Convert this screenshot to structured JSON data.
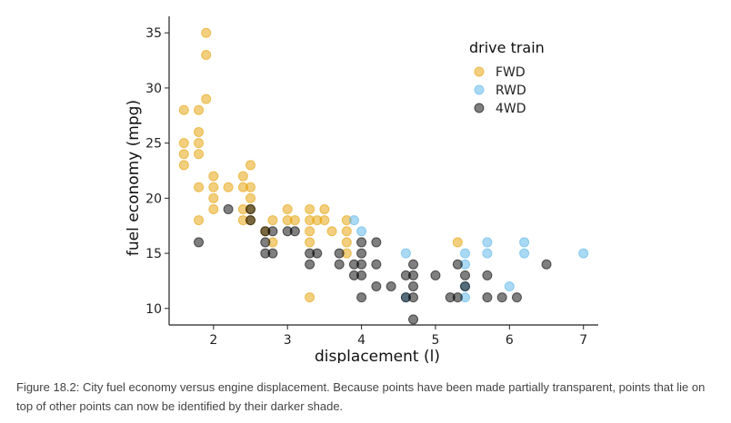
{
  "chart_data": {
    "type": "scatter",
    "xlabel": "displacement (l)",
    "ylabel": "fuel economy (mpg)",
    "xlim": [
      1.4,
      7.2
    ],
    "ylim": [
      8.5,
      36.5
    ],
    "xticks": [
      2,
      3,
      4,
      5,
      6,
      7
    ],
    "yticks": [
      10,
      15,
      20,
      25,
      30,
      35
    ],
    "grid": false,
    "legend": {
      "title": "drive train",
      "position": "top-right"
    },
    "series": [
      {
        "name": "FWD",
        "color": "#E69F00",
        "points": [
          [
            1.6,
            28
          ],
          [
            1.6,
            25
          ],
          [
            1.6,
            24
          ],
          [
            1.6,
            23
          ],
          [
            1.8,
            28
          ],
          [
            1.8,
            26
          ],
          [
            1.8,
            25
          ],
          [
            1.8,
            24
          ],
          [
            1.8,
            21
          ],
          [
            1.8,
            18
          ],
          [
            1.9,
            35
          ],
          [
            1.9,
            33
          ],
          [
            1.9,
            29
          ],
          [
            2.0,
            22
          ],
          [
            2.0,
            21
          ],
          [
            2.0,
            20
          ],
          [
            2.0,
            19
          ],
          [
            2.2,
            21
          ],
          [
            2.4,
            22
          ],
          [
            2.4,
            21
          ],
          [
            2.4,
            19
          ],
          [
            2.4,
            18
          ],
          [
            2.5,
            23
          ],
          [
            2.5,
            21
          ],
          [
            2.5,
            20
          ],
          [
            2.5,
            19
          ],
          [
            2.5,
            18
          ],
          [
            2.7,
            17
          ],
          [
            2.8,
            18
          ],
          [
            2.8,
            16
          ],
          [
            3.0,
            19
          ],
          [
            3.0,
            18
          ],
          [
            3.1,
            18
          ],
          [
            3.3,
            19
          ],
          [
            3.3,
            18
          ],
          [
            3.3,
            17
          ],
          [
            3.3,
            16
          ],
          [
            3.3,
            11
          ],
          [
            3.4,
            18
          ],
          [
            3.5,
            19
          ],
          [
            3.5,
            18
          ],
          [
            3.6,
            17
          ],
          [
            3.8,
            18
          ],
          [
            3.8,
            17
          ],
          [
            3.8,
            16
          ],
          [
            3.8,
            15
          ],
          [
            5.3,
            16
          ]
        ]
      },
      {
        "name": "RWD",
        "color": "#56B4E9",
        "points": [
          [
            3.9,
            18
          ],
          [
            4.0,
            17
          ],
          [
            4.6,
            15
          ],
          [
            4.6,
            11
          ],
          [
            5.4,
            15
          ],
          [
            5.4,
            14
          ],
          [
            5.4,
            12
          ],
          [
            5.4,
            11
          ],
          [
            5.7,
            16
          ],
          [
            5.7,
            15
          ],
          [
            6.0,
            12
          ],
          [
            6.2,
            16
          ],
          [
            6.2,
            15
          ],
          [
            7.0,
            15
          ]
        ]
      },
      {
        "name": "4WD",
        "color": "#000000",
        "points": [
          [
            1.8,
            16
          ],
          [
            2.2,
            19
          ],
          [
            2.5,
            19
          ],
          [
            2.5,
            18
          ],
          [
            2.7,
            17
          ],
          [
            2.7,
            16
          ],
          [
            2.7,
            15
          ],
          [
            2.8,
            17
          ],
          [
            2.8,
            15
          ],
          [
            3.0,
            17
          ],
          [
            3.1,
            17
          ],
          [
            3.3,
            15
          ],
          [
            3.3,
            14
          ],
          [
            3.4,
            15
          ],
          [
            3.7,
            15
          ],
          [
            3.7,
            14
          ],
          [
            3.9,
            14
          ],
          [
            3.9,
            13
          ],
          [
            4.0,
            16
          ],
          [
            4.0,
            15
          ],
          [
            4.0,
            14
          ],
          [
            4.0,
            13
          ],
          [
            4.0,
            11
          ],
          [
            4.2,
            16
          ],
          [
            4.2,
            14
          ],
          [
            4.2,
            12
          ],
          [
            4.4,
            12
          ],
          [
            4.6,
            13
          ],
          [
            4.6,
            11
          ],
          [
            4.7,
            14
          ],
          [
            4.7,
            13
          ],
          [
            4.7,
            12
          ],
          [
            4.7,
            11
          ],
          [
            4.7,
            9
          ],
          [
            5.0,
            13
          ],
          [
            5.2,
            11
          ],
          [
            5.3,
            14
          ],
          [
            5.3,
            11
          ],
          [
            5.4,
            13
          ],
          [
            5.4,
            12
          ],
          [
            5.7,
            13
          ],
          [
            5.7,
            11
          ],
          [
            5.9,
            11
          ],
          [
            6.1,
            11
          ],
          [
            6.5,
            14
          ]
        ]
      }
    ]
  },
  "caption": "Figure 18.2: City fuel economy versus engine displacement. Because points have been made partially transparent, points that lie on top of other points can now be identified by their darker shade."
}
